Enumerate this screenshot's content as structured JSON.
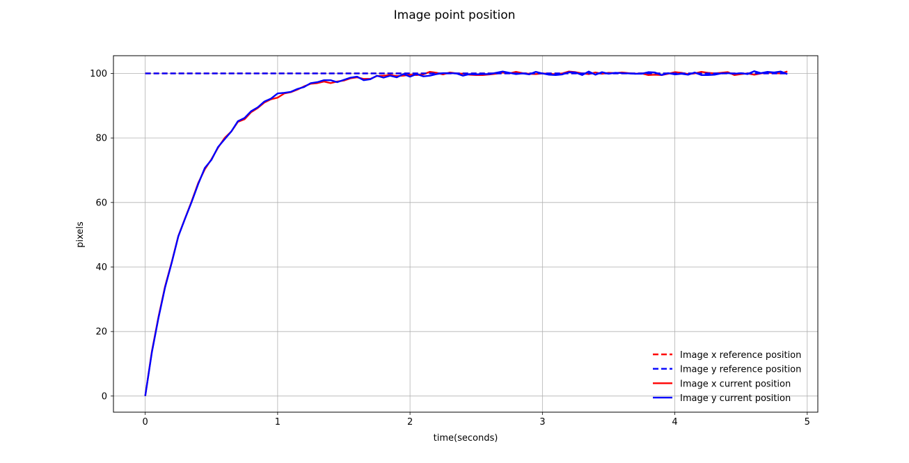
{
  "chart_data": {
    "type": "line",
    "title": "Image point position",
    "xlabel": "time(seconds)",
    "ylabel": "pixels",
    "xlim": [
      -0.24,
      5.08
    ],
    "ylim": [
      -5,
      105.5
    ],
    "xticks": [
      0,
      1,
      2,
      3,
      4,
      5
    ],
    "xtick_labels": [
      "0",
      "1",
      "2",
      "3",
      "4",
      "5"
    ],
    "yticks": [
      0,
      20,
      40,
      60,
      80,
      100
    ],
    "ytick_labels": [
      "0",
      "20",
      "40",
      "60",
      "80",
      "100"
    ],
    "grid": true,
    "legend_position": "lower-right",
    "x": [
      0.0,
      0.05,
      0.1,
      0.15,
      0.2,
      0.25,
      0.3,
      0.35,
      0.4,
      0.45,
      0.5,
      0.55,
      0.6,
      0.65,
      0.7,
      0.75,
      0.8,
      0.85,
      0.9,
      0.95,
      1.0,
      1.05,
      1.1,
      1.15,
      1.2,
      1.25,
      1.3,
      1.35,
      1.4,
      1.45,
      1.5,
      1.55,
      1.6,
      1.65,
      1.7,
      1.75,
      1.8,
      1.85,
      1.9,
      1.95,
      2.0,
      2.05,
      2.1,
      2.15,
      2.2,
      2.25,
      2.3,
      2.35,
      2.4,
      2.45,
      2.5,
      2.55,
      2.6,
      2.65,
      2.7,
      2.75,
      2.8,
      2.85,
      2.9,
      2.95,
      3.0,
      3.05,
      3.1,
      3.15,
      3.2,
      3.25,
      3.3,
      3.35,
      3.4,
      3.45,
      3.5,
      3.55,
      3.6,
      3.65,
      3.7,
      3.75,
      3.8,
      3.85,
      3.9,
      3.95,
      4.0,
      4.05,
      4.1,
      4.15,
      4.2,
      4.25,
      4.3,
      4.35,
      4.4,
      4.45,
      4.5,
      4.55,
      4.6,
      4.65,
      4.7,
      4.75,
      4.8,
      4.85
    ],
    "series": [
      {
        "name": "Image x reference position",
        "color": "#ff0000",
        "style": "dashed",
        "values": [
          100,
          100,
          100,
          100,
          100,
          100,
          100,
          100,
          100,
          100,
          100,
          100,
          100,
          100,
          100,
          100,
          100,
          100,
          100,
          100,
          100,
          100,
          100,
          100,
          100,
          100,
          100,
          100,
          100,
          100,
          100,
          100,
          100,
          100,
          100,
          100,
          100,
          100,
          100,
          100,
          100,
          100,
          100,
          100,
          100,
          100,
          100,
          100,
          100,
          100,
          100,
          100,
          100,
          100,
          100,
          100,
          100,
          100,
          100,
          100,
          100,
          100,
          100,
          100,
          100,
          100,
          100,
          100,
          100,
          100,
          100,
          100,
          100,
          100,
          100,
          100,
          100,
          100,
          100,
          100,
          100,
          100,
          100,
          100,
          100,
          100,
          100,
          100,
          100,
          100,
          100,
          100,
          100,
          100,
          100,
          100,
          100,
          100
        ]
      },
      {
        "name": "Image y reference position",
        "color": "#0000ff",
        "style": "dashed",
        "values": [
          100,
          100,
          100,
          100,
          100,
          100,
          100,
          100,
          100,
          100,
          100,
          100,
          100,
          100,
          100,
          100,
          100,
          100,
          100,
          100,
          100,
          100,
          100,
          100,
          100,
          100,
          100,
          100,
          100,
          100,
          100,
          100,
          100,
          100,
          100,
          100,
          100,
          100,
          100,
          100,
          100,
          100,
          100,
          100,
          100,
          100,
          100,
          100,
          100,
          100,
          100,
          100,
          100,
          100,
          100,
          100,
          100,
          100,
          100,
          100,
          100,
          100,
          100,
          100,
          100,
          100,
          100,
          100,
          100,
          100,
          100,
          100,
          100,
          100,
          100,
          100,
          100,
          100,
          100,
          100,
          100,
          100,
          100,
          100,
          100,
          100,
          100,
          100,
          100,
          100,
          100,
          100,
          100,
          100,
          100,
          100,
          100,
          100
        ]
      },
      {
        "name": "Image x current position",
        "color": "#ff0000",
        "style": "solid",
        "values": [
          0,
          13.8,
          24.5,
          34.0,
          41.5,
          49.6,
          55.0,
          60.3,
          66.0,
          70.3,
          73.4,
          77.0,
          80.0,
          82.0,
          85.0,
          85.8,
          88.0,
          89.3,
          91.0,
          92.0,
          92.5,
          93.8,
          94.2,
          95.0,
          96.0,
          96.8,
          97.0,
          97.5,
          97.0,
          97.5,
          97.8,
          98.5,
          98.8,
          98.3,
          98.3,
          99.2,
          99.3,
          99.5,
          99.2,
          99.3,
          99.6,
          99.5,
          99.7,
          100.5,
          100.2,
          99.7,
          100.3,
          100.0,
          99.9,
          99.6,
          99.5,
          99.5,
          99.7,
          99.9,
          100.3,
          100.0,
          100.5,
          100.1,
          99.9,
          99.8,
          100.0,
          99.9,
          99.7,
          100.0,
          100.6,
          100.4,
          100.0,
          99.8,
          100.3,
          99.9,
          100.2,
          100.1,
          100.3,
          100.1,
          99.9,
          100.0,
          99.5,
          99.6,
          99.5,
          99.9,
          100.4,
          100.2,
          99.8,
          100.0,
          100.5,
          100.2,
          100.0,
          100.2,
          100.4,
          99.5,
          99.8,
          100.0,
          99.6,
          100.0,
          100.3,
          100.1,
          100.0,
          100.6
        ]
      },
      {
        "name": "Image y current position",
        "color": "#0000ff",
        "style": "solid",
        "values": [
          0,
          13.5,
          24.2,
          33.7,
          41.3,
          49.5,
          54.9,
          60.1,
          65.7,
          70.7,
          73.2,
          77.2,
          79.6,
          82.0,
          85.2,
          86.2,
          88.3,
          89.5,
          91.3,
          92.2,
          93.8,
          94.0,
          94.3,
          95.2,
          95.8,
          97.0,
          97.3,
          97.9,
          97.9,
          97.3,
          98.0,
          98.7,
          99.0,
          97.9,
          98.2,
          99.3,
          98.7,
          99.3,
          98.8,
          99.8,
          99.0,
          99.8,
          99.1,
          99.3,
          99.8,
          100.1,
          100.1,
          100.0,
          99.3,
          99.8,
          99.7,
          99.8,
          99.8,
          100.2,
          100.6,
          100.2,
          99.8,
          100.0,
          99.7,
          100.5,
          100.0,
          99.6,
          99.5,
          99.7,
          100.4,
          100.3,
          99.5,
          100.6,
          99.6,
          100.4,
          99.9,
          100.2,
          100.1,
          100.0,
          99.9,
          99.9,
          100.4,
          100.3,
          99.5,
          100.1,
          99.7,
          99.9,
          99.6,
          100.3,
          99.5,
          99.5,
          99.6,
          100.0,
          100.1,
          99.9,
          100.1,
          99.8,
          100.7,
          100.1,
          100.5,
          100.3,
          100.6,
          99.8
        ]
      }
    ]
  }
}
